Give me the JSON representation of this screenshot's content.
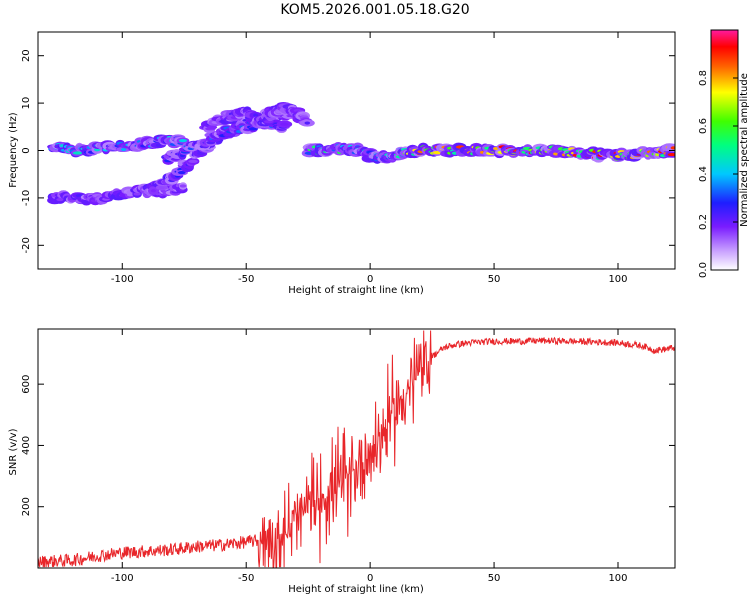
{
  "title": "KOM5.2026.001.05.18.G20",
  "colors": {
    "snr_line": "#e8262a",
    "axis": "#000000",
    "background": "#ffffff"
  },
  "chart_data": [
    {
      "type": "heatmap",
      "title": "KOM5.2026.001.05.18.G20",
      "xlabel": "Height of straight line (km)",
      "ylabel": "Frequency (Hz)",
      "xlim": [
        -134,
        123
      ],
      "ylim": [
        -25,
        25
      ],
      "xticks": [
        -100,
        -50,
        0,
        50,
        100
      ],
      "yticks": [
        -20,
        -10,
        0,
        10,
        20
      ],
      "colorbar": {
        "label": "Normalized spectral amplitude",
        "range": [
          0.0,
          1.0
        ],
        "ticks": [
          0.0,
          0.2,
          0.4,
          0.6,
          0.8
        ]
      },
      "ridges": [
        {
          "x": [
            -128,
            -118,
            -108,
            -98,
            -90,
            -82,
            -75
          ],
          "f": [
            -10,
            -10,
            -10,
            -9,
            -8.5,
            -8.5,
            -8
          ],
          "amp": 0.2
        },
        {
          "x": [
            -128,
            -118,
            -108,
            -98,
            -90,
            -82,
            -75
          ],
          "f": [
            1,
            0,
            0.5,
            1,
            1.5,
            2,
            2
          ],
          "amp": 0.4
        },
        {
          "x": [
            -88,
            -80,
            -72,
            -64,
            -56,
            -48,
            -40,
            -32
          ],
          "f": [
            -8,
            -6,
            -2,
            2,
            4,
            6,
            8,
            7
          ],
          "amp": 0.25
        },
        {
          "x": [
            -82,
            -74,
            -66,
            -58,
            -50,
            -42,
            -34
          ],
          "f": [
            -2,
            0,
            2,
            4,
            5,
            6,
            5
          ],
          "amp": 0.3
        },
        {
          "x": [
            -66,
            -58,
            -50,
            -44,
            -40,
            -35,
            -30,
            -25
          ],
          "f": [
            5,
            7,
            8,
            6,
            7,
            9,
            8,
            6
          ],
          "amp": 0.2
        },
        {
          "x": [
            -25,
            -18,
            -10,
            -5,
            0,
            5,
            10,
            15
          ],
          "f": [
            0,
            0,
            0.5,
            0,
            -1,
            -1.5,
            -1,
            0
          ],
          "amp": 0.5
        },
        {
          "x": [
            15,
            25,
            35,
            45,
            55,
            65,
            75,
            85,
            95,
            105,
            115,
            123
          ],
          "f": [
            0,
            0,
            0,
            0,
            0,
            0,
            0,
            -0.5,
            -1,
            -1,
            -0.5,
            0
          ],
          "amp": 0.85
        }
      ]
    },
    {
      "type": "line",
      "xlabel": "Height of straight line (km)",
      "ylabel": "SNR (v/v)",
      "xlim": [
        -134,
        123
      ],
      "ylim": [
        0,
        780
      ],
      "xticks": [
        -100,
        -50,
        0,
        50,
        100
      ],
      "yticks": [
        200,
        400,
        600
      ],
      "series": [
        {
          "name": "SNR",
          "x": [
            -134,
            -120,
            -110,
            -100,
            -90,
            -80,
            -70,
            -60,
            -50,
            -45,
            -40,
            -35,
            -30,
            -25,
            -20,
            -15,
            -10,
            -5,
            0,
            5,
            10,
            15,
            20,
            25,
            30,
            35,
            40,
            50,
            60,
            70,
            80,
            90,
            100,
            110,
            115,
            120,
            123
          ],
          "y": [
            20,
            25,
            40,
            50,
            55,
            60,
            70,
            75,
            85,
            90,
            95,
            110,
            150,
            200,
            230,
            260,
            290,
            330,
            380,
            440,
            520,
            580,
            640,
            690,
            720,
            730,
            735,
            740,
            740,
            742,
            740,
            738,
            735,
            725,
            710,
            715,
            720
          ]
        }
      ]
    }
  ]
}
